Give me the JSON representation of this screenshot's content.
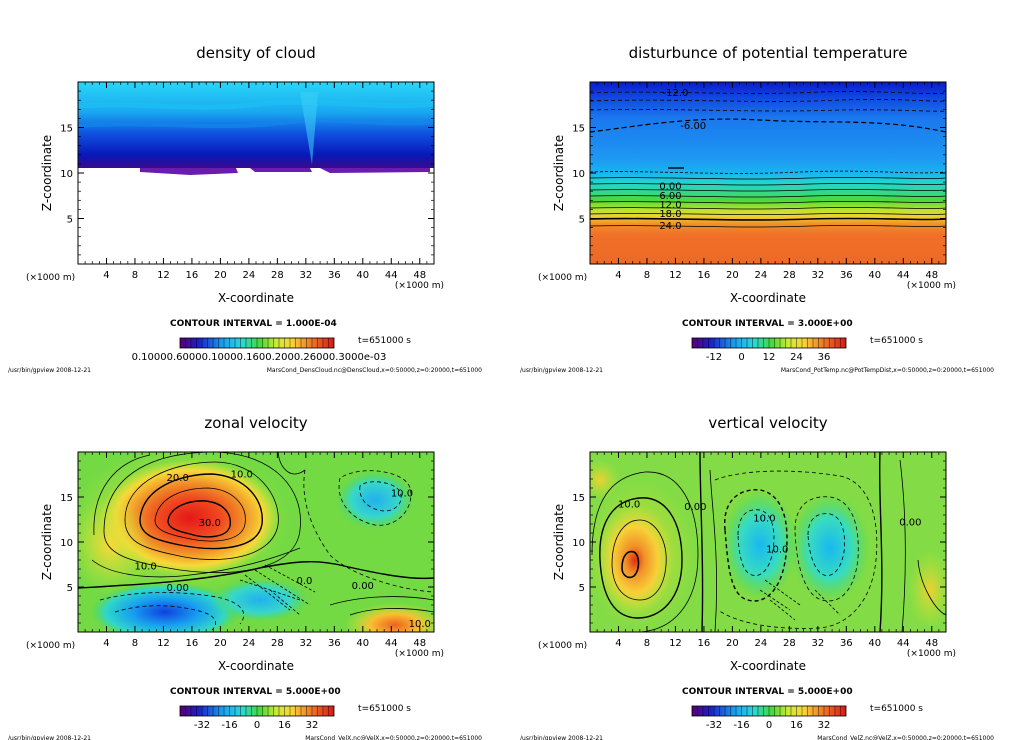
{
  "chart_data": [
    {
      "type": "heatmap",
      "title": "density of cloud",
      "xlabel": "X-coordinate",
      "ylabel": "Z-coordinate",
      "x_unit": "(×1000 m)",
      "x_unit_right": "(×1000 m)",
      "xlim": [
        0,
        50
      ],
      "ylim": [
        0,
        20
      ],
      "x_ticks": [
        "4",
        "8",
        "12",
        "16",
        "20",
        "24",
        "28",
        "32",
        "36",
        "40",
        "44",
        "48"
      ],
      "y_ticks": [
        "5",
        "10",
        "15"
      ],
      "contour_interval": "CONTOUR INTERVAL = 1.000E-04",
      "time": "t=651000 s",
      "colorbar_labels": "0.10000.60000.10000.1600.2000.26000.3000e-03",
      "footer_left": "/usr/bin/gpview   2008-12-21",
      "footer_right": "MarsCond_DensCloud.nc@DensCloud,x=0:50000,z=0:20000,t=651000",
      "contour_labels": []
    },
    {
      "type": "heatmap",
      "title": "disturbunce of potential temperature",
      "xlabel": "X-coordinate",
      "ylabel": "Z-coordinate",
      "x_unit": "(×1000 m)",
      "x_unit_right": "(×1000 m)",
      "xlim": [
        0,
        50
      ],
      "ylim": [
        0,
        20
      ],
      "x_ticks": [
        "4",
        "8",
        "12",
        "16",
        "20",
        "24",
        "28",
        "32",
        "36",
        "40",
        "44",
        "48"
      ],
      "y_ticks": [
        "5",
        "10",
        "15"
      ],
      "contour_interval": "CONTOUR INTERVAL = 3.000E+00",
      "time": "t=651000 s",
      "colorbar_ticks": [
        "-12",
        "0",
        "12",
        "24",
        "36"
      ],
      "footer_left": "/usr/bin/gpview   2008-12-21",
      "footer_right": "MarsCond_PotTemp.nc@PotTempDist,x=0:50000,z=0:20000,t=651000",
      "contour_labels": [
        {
          "text": "-12.0",
          "x": 12,
          "z": 18.9
        },
        {
          "text": "-6.00",
          "x": 14.5,
          "z": 15.3
        },
        {
          "text": "0.00",
          "x": 11.3,
          "z": 8.6
        },
        {
          "text": "6.00",
          "x": 11.3,
          "z": 7.6
        },
        {
          "text": "12.0",
          "x": 11.3,
          "z": 6.6
        },
        {
          "text": "18.0",
          "x": 11.3,
          "z": 5.6
        },
        {
          "text": "24.0",
          "x": 11.3,
          "z": 4.3
        }
      ]
    },
    {
      "type": "heatmap",
      "title": "zonal velocity",
      "xlabel": "X-coordinate",
      "ylabel": "Z-coordinate",
      "x_unit": "(×1000 m)",
      "x_unit_right": "(×1000 m)",
      "xlim": [
        0,
        50
      ],
      "ylim": [
        0,
        20
      ],
      "x_ticks": [
        "4",
        "8",
        "12",
        "16",
        "20",
        "24",
        "28",
        "32",
        "36",
        "40",
        "44",
        "48"
      ],
      "y_ticks": [
        "5",
        "10",
        "15"
      ],
      "contour_interval": "CONTOUR INTERVAL = 5.000E+00",
      "time": "t=651000 s",
      "colorbar_ticks": [
        "-32",
        "-16",
        "0",
        "16",
        "32"
      ],
      "footer_left": "/usr/bin/gpview   2008-12-21",
      "footer_right": "MarsCond_VelX.nc@VelX,x=0:50000,z=0:20000,t=651000",
      "contour_labels": [
        {
          "text": "20.0",
          "x": 14,
          "z": 17.2
        },
        {
          "text": "10.0",
          "x": 23,
          "z": 17.6
        },
        {
          "text": "30.0",
          "x": 18.5,
          "z": 12.2
        },
        {
          "text": "10.0",
          "x": 9.5,
          "z": 7.4
        },
        {
          "text": "0.00",
          "x": 14,
          "z": 5.0
        },
        {
          "text": "0.00",
          "x": 40,
          "z": 5.2
        },
        {
          "text": "10.0",
          "x": 45.5,
          "z": 15.5
        },
        {
          "text": "10.0",
          "x": 48,
          "z": 1.0
        },
        {
          "text": "0.0",
          "x": 31.8,
          "z": 5.8
        }
      ]
    },
    {
      "type": "heatmap",
      "title": "vertical velocity",
      "xlabel": "X-coordinate",
      "ylabel": "Z-coordinate",
      "x_unit": "(×1000 m)",
      "x_unit_right": "(×1000 m)",
      "xlim": [
        0,
        50
      ],
      "ylim": [
        0,
        20
      ],
      "x_ticks": [
        "4",
        "8",
        "12",
        "16",
        "20",
        "24",
        "28",
        "32",
        "36",
        "40",
        "44",
        "48"
      ],
      "y_ticks": [
        "5",
        "10",
        "15"
      ],
      "contour_interval": "CONTOUR INTERVAL = 5.000E+00",
      "time": "t=651000 s",
      "colorbar_ticks": [
        "-32",
        "-16",
        "0",
        "16",
        "32"
      ],
      "footer_left": "/usr/bin/gpview   2008-12-21",
      "footer_right": "MarsCond_VelZ.nc@VelZ,x=0:50000,z=0:20000,t=651000",
      "contour_labels": [
        {
          "text": "10.0",
          "x": 5.5,
          "z": 14.3
        },
        {
          "text": "0.00",
          "x": 14.8,
          "z": 14.0
        },
        {
          "text": "10.0",
          "x": 24.5,
          "z": 12.7
        },
        {
          "text": "10.0",
          "x": 26.3,
          "z": 9.3
        },
        {
          "text": "0.00",
          "x": 45.0,
          "z": 12.3
        }
      ]
    }
  ]
}
